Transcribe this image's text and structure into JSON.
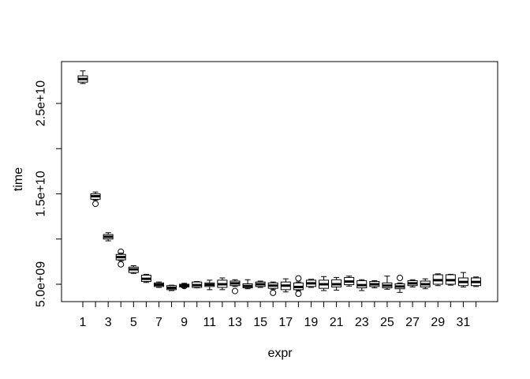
{
  "figure": {
    "background_color": "#ffffff",
    "line_color": "#000000"
  },
  "chart_data": {
    "type": "boxplot",
    "title": "",
    "xlabel": "expr",
    "ylabel": "time",
    "ylim": [
      3600000000.0,
      29000000000.0
    ],
    "grid": "off",
    "x_tick_labels": [
      "1",
      "",
      "3",
      "",
      "5",
      "",
      "7",
      "",
      "9",
      "",
      "11",
      "",
      "13",
      "",
      "15",
      "",
      "17",
      "",
      "19",
      "",
      "21",
      "",
      "23",
      "",
      "25",
      "",
      "27",
      "",
      "29",
      "",
      "31",
      ""
    ],
    "y_ticks": [
      {
        "value": 5000000000.0,
        "label": "5.0e+09"
      },
      {
        "value": 10000000000.0,
        "label": ""
      },
      {
        "value": 15000000000.0,
        "label": "1.5e+10"
      },
      {
        "value": 20000000000.0,
        "label": ""
      },
      {
        "value": 25000000000.0,
        "label": "2.5e+10"
      }
    ],
    "boxes": [
      {
        "pos": 1,
        "whisker_low": 27200000000.0,
        "q1": 27350000000.0,
        "median": 27700000000.0,
        "q3": 28050000000.0,
        "whisker_high": 28600000000.0,
        "outliers": []
      },
      {
        "pos": 2,
        "whisker_low": 14300000000.0,
        "q1": 14400000000.0,
        "median": 14740000000.0,
        "q3": 15000000000.0,
        "whisker_high": 15200000000.0,
        "outliers": [
          13900000000.0
        ]
      },
      {
        "pos": 3,
        "whisker_low": 9800000000.0,
        "q1": 10000000000.0,
        "median": 10250000000.0,
        "q3": 10500000000.0,
        "whisker_high": 10700000000.0,
        "outliers": []
      },
      {
        "pos": 4,
        "whisker_low": 7600000000.0,
        "q1": 7700000000.0,
        "median": 8000000000.0,
        "q3": 8300000000.0,
        "whisker_high": 8450000000.0,
        "outliers": [
          8600000000.0,
          7200000000.0
        ]
      },
      {
        "pos": 5,
        "whisker_low": 6200000000.0,
        "q1": 6300000000.0,
        "median": 6650000000.0,
        "q3": 6900000000.0,
        "whisker_high": 7050000000.0,
        "outliers": []
      },
      {
        "pos": 6,
        "whisker_low": 5200000000.0,
        "q1": 5300000000.0,
        "median": 5600000000.0,
        "q3": 6000000000.0,
        "whisker_high": 6100000000.0,
        "outliers": []
      },
      {
        "pos": 7,
        "whisker_low": 4650000000.0,
        "q1": 4750000000.0,
        "median": 4950000000.0,
        "q3": 5150000000.0,
        "whisker_high": 5250000000.0,
        "outliers": []
      },
      {
        "pos": 8,
        "whisker_low": 4300000000.0,
        "q1": 4400000000.0,
        "median": 4600000000.0,
        "q3": 4850000000.0,
        "whisker_high": 4900000000.0,
        "outliers": []
      },
      {
        "pos": 9,
        "whisker_low": 4600000000.0,
        "q1": 4700000000.0,
        "median": 4850000000.0,
        "q3": 5000000000.0,
        "whisker_high": 5100000000.0,
        "outliers": [
          4800000000.0
        ]
      },
      {
        "pos": 10,
        "whisker_low": 4600000000.0,
        "q1": 4650000000.0,
        "median": 4900000000.0,
        "q3": 5250000000.0,
        "whisker_high": 5300000000.0,
        "outliers": []
      },
      {
        "pos": 11,
        "whisker_low": 4400000000.0,
        "q1": 4750000000.0,
        "median": 4950000000.0,
        "q3": 5150000000.0,
        "whisker_high": 5450000000.0,
        "outliers": []
      },
      {
        "pos": 12,
        "whisker_low": 4400000000.0,
        "q1": 4650000000.0,
        "median": 5000000000.0,
        "q3": 5450000000.0,
        "whisker_high": 5700000000.0,
        "outliers": []
      },
      {
        "pos": 13,
        "whisker_low": 4750000000.0,
        "q1": 4850000000.0,
        "median": 5100000000.0,
        "q3": 5350000000.0,
        "whisker_high": 5500000000.0,
        "outliers": [
          4250000000.0
        ]
      },
      {
        "pos": 14,
        "whisker_low": 4500000000.0,
        "q1": 4600000000.0,
        "median": 4800000000.0,
        "q3": 5050000000.0,
        "whisker_high": 5500000000.0,
        "outliers": []
      },
      {
        "pos": 15,
        "whisker_low": 4650000000.0,
        "q1": 4750000000.0,
        "median": 5000000000.0,
        "q3": 5250000000.0,
        "whisker_high": 5350000000.0,
        "outliers": []
      },
      {
        "pos": 16,
        "whisker_low": 4450000000.0,
        "q1": 4550000000.0,
        "median": 4850000000.0,
        "q3": 5150000000.0,
        "whisker_high": 5250000000.0,
        "outliers": [
          4050000000.0
        ]
      },
      {
        "pos": 17,
        "whisker_low": 4150000000.0,
        "q1": 4400000000.0,
        "median": 4850000000.0,
        "q3": 5250000000.0,
        "whisker_high": 5600000000.0,
        "outliers": []
      },
      {
        "pos": 18,
        "whisker_low": 4300000000.0,
        "q1": 4400000000.0,
        "median": 4700000000.0,
        "q3": 5150000000.0,
        "whisker_high": 5250000000.0,
        "outliers": [
          5650000000.0,
          3950000000.0
        ]
      },
      {
        "pos": 19,
        "whisker_low": 4650000000.0,
        "q1": 4750000000.0,
        "median": 5100000000.0,
        "q3": 5450000000.0,
        "whisker_high": 5550000000.0,
        "outliers": []
      },
      {
        "pos": 20,
        "whisker_low": 4300000000.0,
        "q1": 4550000000.0,
        "median": 5000000000.0,
        "q3": 5450000000.0,
        "whisker_high": 5850000000.0,
        "outliers": []
      },
      {
        "pos": 21,
        "whisker_low": 4350000000.0,
        "q1": 4700000000.0,
        "median": 5000000000.0,
        "q3": 5500000000.0,
        "whisker_high": 5750000000.0,
        "outliers": []
      },
      {
        "pos": 22,
        "whisker_low": 4800000000.0,
        "q1": 4950000000.0,
        "median": 5300000000.0,
        "q3": 5750000000.0,
        "whisker_high": 5900000000.0,
        "outliers": []
      },
      {
        "pos": 23,
        "whisker_low": 4300000000.0,
        "q1": 4600000000.0,
        "median": 4900000000.0,
        "q3": 5400000000.0,
        "whisker_high": 5500000000.0,
        "outliers": []
      },
      {
        "pos": 24,
        "whisker_low": 4600000000.0,
        "q1": 4750000000.0,
        "median": 5000000000.0,
        "q3": 5300000000.0,
        "whisker_high": 5400000000.0,
        "outliers": []
      },
      {
        "pos": 25,
        "whisker_low": 4450000000.0,
        "q1": 4600000000.0,
        "median": 4850000000.0,
        "q3": 5150000000.0,
        "whisker_high": 5900000000.0,
        "outliers": []
      },
      {
        "pos": 26,
        "whisker_low": 4100000000.0,
        "q1": 4500000000.0,
        "median": 4750000000.0,
        "q3": 5050000000.0,
        "whisker_high": 5150000000.0,
        "outliers": [
          5700000000.0
        ]
      },
      {
        "pos": 27,
        "whisker_low": 4700000000.0,
        "q1": 4850000000.0,
        "median": 5100000000.0,
        "q3": 5400000000.0,
        "whisker_high": 5500000000.0,
        "outliers": []
      },
      {
        "pos": 28,
        "whisker_low": 4500000000.0,
        "q1": 4700000000.0,
        "median": 5000000000.0,
        "q3": 5350000000.0,
        "whisker_high": 5600000000.0,
        "outliers": []
      },
      {
        "pos": 29,
        "whisker_low": 4850000000.0,
        "q1": 5000000000.0,
        "median": 5450000000.0,
        "q3": 6050000000.0,
        "whisker_high": 6150000000.0,
        "outliers": []
      },
      {
        "pos": 30,
        "whisker_low": 4900000000.0,
        "q1": 5000000000.0,
        "median": 5450000000.0,
        "q3": 6050000000.0,
        "whisker_high": 6100000000.0,
        "outliers": []
      },
      {
        "pos": 31,
        "whisker_low": 4700000000.0,
        "q1": 4850000000.0,
        "median": 5250000000.0,
        "q3": 5700000000.0,
        "whisker_high": 6300000000.0,
        "outliers": []
      },
      {
        "pos": 32,
        "whisker_low": 4750000000.0,
        "q1": 4850000000.0,
        "median": 5250000000.0,
        "q3": 5700000000.0,
        "whisker_high": 5800000000.0,
        "outliers": []
      }
    ]
  }
}
